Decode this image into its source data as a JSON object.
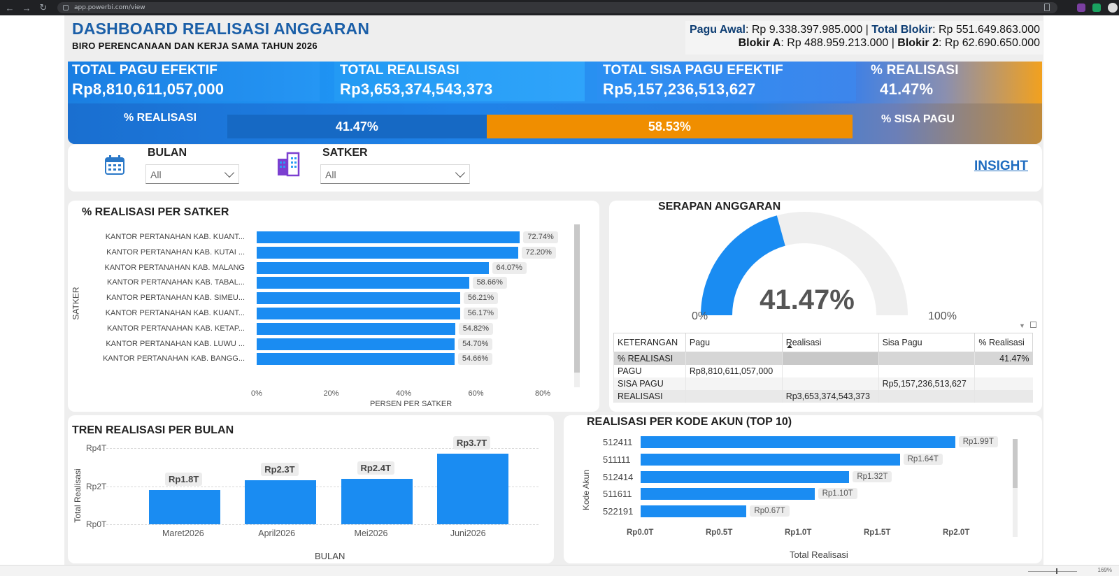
{
  "browser": {
    "url": "app.powerbi.com/view",
    "zoom": "169%"
  },
  "header": {
    "title": "DASHBOARD REALISASI ANGGARAN",
    "subtitle": "BIRO PERENCANAAN DAN KERJA SAMA TAHUN 2026",
    "pagu_awal_label": "Pagu Awal",
    "pagu_awal_value": ": Rp 9.338.397.985.000 | ",
    "total_blokir_label": "Total Blokir",
    "total_blokir_value": ": Rp 551.649.863.000",
    "blokir_a_label": "Blokir A",
    "blokir_a_value": ": Rp 488.959.213.000 | ",
    "blokir_2_label": "Blokir 2",
    "blokir_2_value": ": Rp 62.690.650.000"
  },
  "kpis": {
    "total_pagu_label": "TOTAL PAGU EFEKTIF",
    "total_pagu_value": "Rp8,810,611,057,000",
    "total_realisasi_label": "TOTAL REALISASI",
    "total_realisasi_value": "Rp3,653,374,543,373",
    "total_sisa_label": "TOTAL SISA PAGU EFEKTIF",
    "total_sisa_value": "Rp5,157,236,513,627",
    "pct_realisasi_label": "% REALISASI",
    "pct_realisasi_value": "41.47%",
    "bar_realisasi_label": "% REALISASI",
    "bar_sisa_label": "% SISA PAGU",
    "bar_realisasi_pct": 41.47,
    "bar_realisasi_text": "41.47%",
    "bar_sisa_pct": 58.53,
    "bar_sisa_text": "58.53%"
  },
  "slicers": {
    "bulan_title": "BULAN",
    "bulan_value": "All",
    "satker_title": "SATKER",
    "satker_value": "All",
    "insight_link": "INSIGHT"
  },
  "satker_chart": {
    "title": "% REALISASI PER SATKER",
    "ylabel": "SATKER",
    "xlabel": "PERSEN PER SATKER",
    "ticks": [
      "0%",
      "20%",
      "40%",
      "60%",
      "80%"
    ]
  },
  "gauge": {
    "title": "SERAPAN ANGGARAN",
    "value": 41.47,
    "value_text": "41.47%",
    "min_label": "0%",
    "max_label": "100%"
  },
  "gauge_table": {
    "headers": [
      "KETERANGAN",
      "Pagu",
      "Realisasi",
      "Sisa Pagu",
      "% Realisasi"
    ],
    "rows": [
      [
        "% REALISASI",
        "",
        "",
        "",
        "41.47%"
      ],
      [
        "PAGU",
        "Rp8,810,611,057,000",
        "",
        "",
        ""
      ],
      [
        "SISA PAGU",
        "",
        "",
        "Rp5,157,236,513,627",
        ""
      ],
      [
        "REALISASI",
        "",
        "Rp3,653,374,543,373",
        "",
        ""
      ]
    ]
  },
  "tren_chart": {
    "title": "TREN REALISASI PER BULAN",
    "ylabel": "Total Realisasi",
    "xlabel": "BULAN",
    "yticks": [
      "Rp4T",
      "Rp2T",
      "Rp0T"
    ]
  },
  "akun_chart": {
    "title": "REALISASI PER KODE AKUN (TOP 10)",
    "ylabel": "Kode Akun",
    "xlabel": "Total Realisasi",
    "ticks": [
      "Rp0.0T",
      "Rp0.5T",
      "Rp1.0T",
      "Rp1.5T",
      "Rp2.0T"
    ]
  },
  "chart_data": [
    {
      "type": "bar",
      "orientation": "horizontal",
      "title": "% REALISASI PER SATKER",
      "xlabel": "PERSEN PER SATKER",
      "ylabel": "SATKER",
      "xlim": [
        0,
        80
      ],
      "categories": [
        "KANTOR PERTANAHAN KAB. KUANT...",
        "KANTOR PERTANAHAN KAB. KUTAI ...",
        "KANTOR PERTANAHAN KAB. MALANG",
        "KANTOR PERTANAHAN KAB. TABAL...",
        "KANTOR PERTANAHAN KAB. SIMEU...",
        "KANTOR PERTANAHAN KAB. KUANT...",
        "KANTOR PERTANAHAN KAB. KETAP...",
        "KANTOR PERTANAHAN KAB. LUWU ...",
        "KANTOR PERTANAHAN KAB. BANGG..."
      ],
      "values": [
        72.74,
        72.2,
        64.07,
        58.66,
        56.21,
        56.17,
        54.82,
        54.7,
        54.66
      ],
      "labels": [
        "72.74%",
        "72.20%",
        "64.07%",
        "58.66%",
        "56.21%",
        "56.17%",
        "54.82%",
        "54.70%",
        "54.66%"
      ]
    },
    {
      "type": "bar",
      "orientation": "vertical",
      "title": "TREN REALISASI PER BULAN",
      "xlabel": "BULAN",
      "ylabel": "Total Realisasi",
      "ylim": [
        0,
        4
      ],
      "categories": [
        "Maret2026",
        "April2026",
        "Mei2026",
        "Juni2026"
      ],
      "values": [
        1.8,
        2.3,
        2.4,
        3.7
      ],
      "labels": [
        "Rp1.8T",
        "Rp2.3T",
        "Rp2.4T",
        "Rp3.7T"
      ]
    },
    {
      "type": "bar",
      "orientation": "horizontal",
      "title": "REALISASI PER KODE AKUN (TOP 10)",
      "xlabel": "Total Realisasi",
      "ylabel": "Kode Akun",
      "xlim": [
        0,
        2.0
      ],
      "categories": [
        "512411",
        "511111",
        "512414",
        "511611",
        "522191"
      ],
      "values": [
        1.99,
        1.64,
        1.32,
        1.1,
        0.67
      ],
      "labels": [
        "Rp1.99T",
        "Rp1.64T",
        "Rp1.32T",
        "Rp1.10T",
        "Rp0.67T"
      ]
    }
  ]
}
